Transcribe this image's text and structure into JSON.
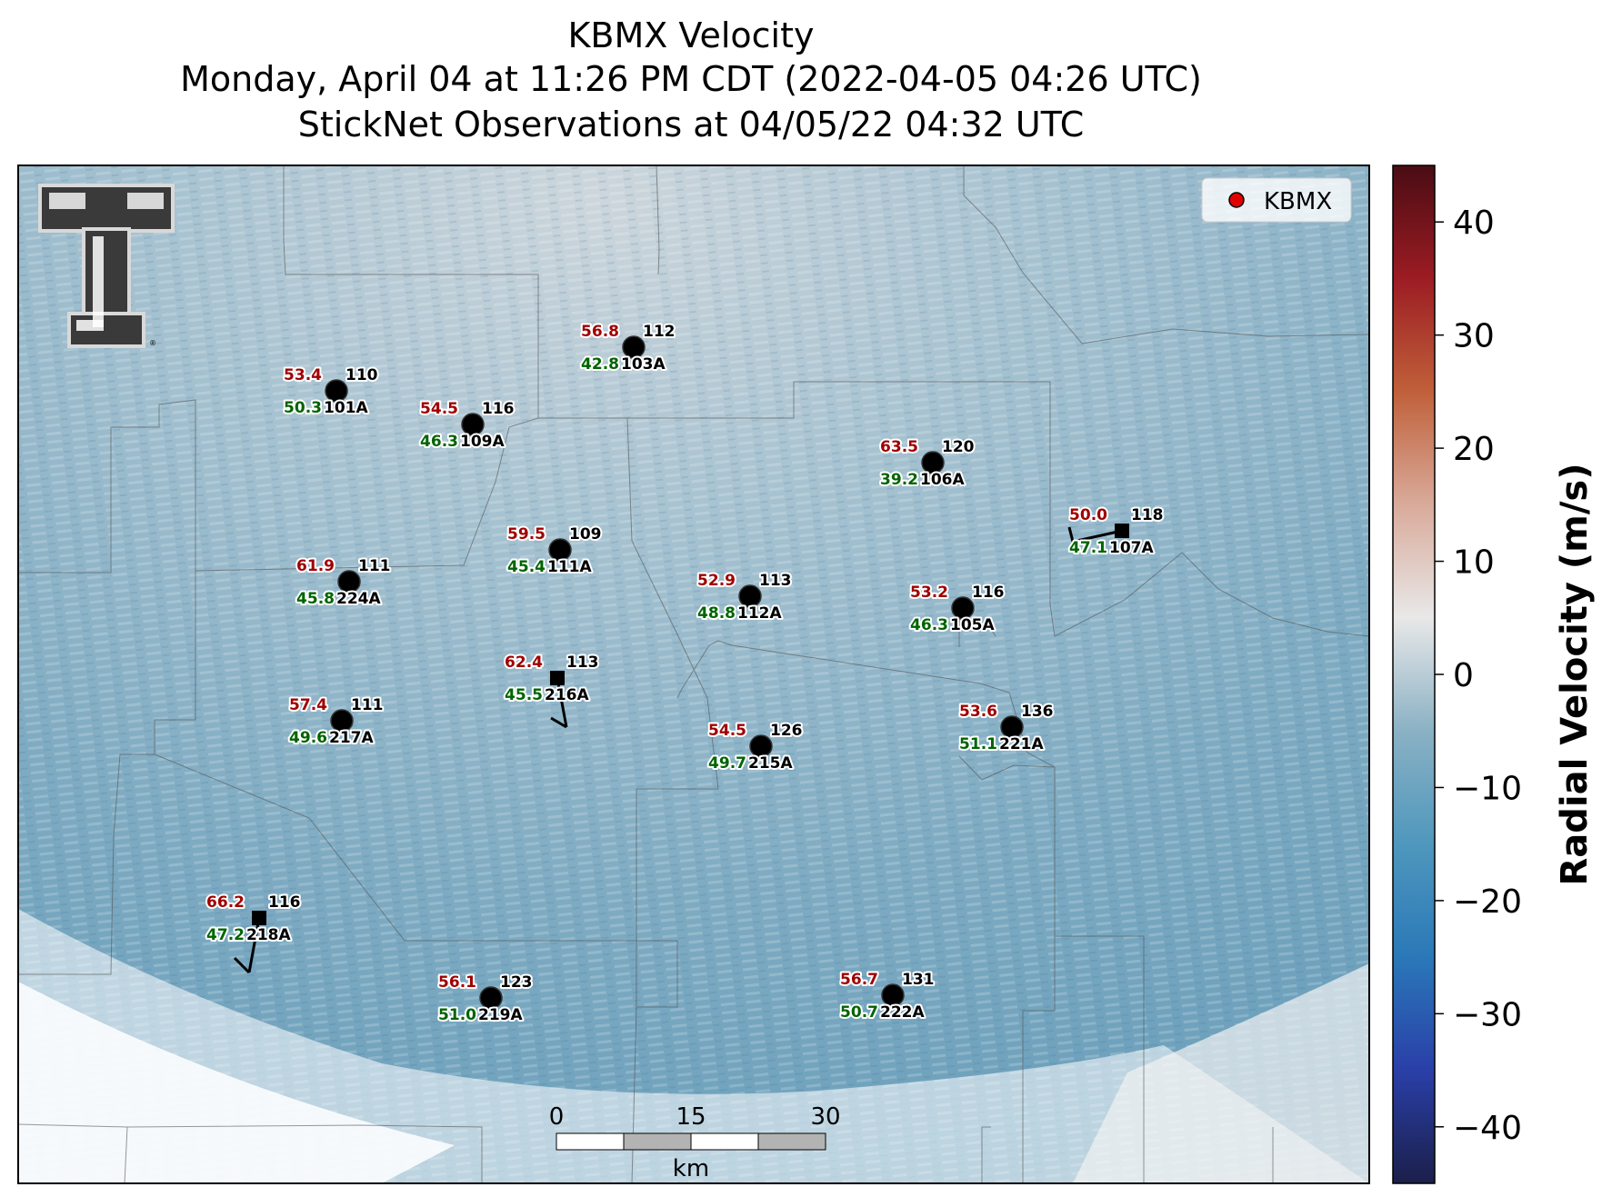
{
  "title": {
    "line1": "KBMX Velocity",
    "line2": "Monday, April 04 at 11:26 PM CDT (2022-04-05 04:26 UTC)",
    "line3": "StickNet Observations at 04/05/22 04:32 UTC"
  },
  "legend": {
    "label": "KBMX",
    "marker_color": "#e00000"
  },
  "colorbar": {
    "label": "Radial Velocity (m/s)",
    "ticks": [
      "40",
      "30",
      "20",
      "10",
      "0",
      "−10",
      "−20",
      "−30",
      "−40"
    ],
    "range": [
      -45,
      45
    ],
    "colors": [
      "#1b1f4a",
      "#2a3fa8",
      "#2a78b8",
      "#4f97bd",
      "#8ab1c4",
      "#e8e8e8",
      "#d9aa9a",
      "#c0603a",
      "#9c1c23",
      "#4a0c14"
    ]
  },
  "scale_bar": {
    "ticks": [
      "0",
      "15",
      "30"
    ],
    "unit": "km"
  },
  "stations": [
    {
      "id": "101A",
      "temp": "53.4",
      "dew": "50.3",
      "dir": "110",
      "marker": "circle"
    },
    {
      "id": "109A",
      "temp": "54.5",
      "dew": "46.3",
      "dir": "116",
      "marker": "circle"
    },
    {
      "id": "103A",
      "temp": "56.8",
      "dew": "42.8",
      "dir": "112",
      "marker": "circle"
    },
    {
      "id": "106A",
      "temp": "63.5",
      "dew": "39.2",
      "dir": "120",
      "marker": "circle"
    },
    {
      "id": "107A",
      "temp": "50.0",
      "dew": "47.1",
      "dir": "118",
      "marker": "square"
    },
    {
      "id": "111A",
      "temp": "59.5",
      "dew": "45.4",
      "dir": "109",
      "marker": "circle"
    },
    {
      "id": "224A",
      "temp": "61.9",
      "dew": "45.8",
      "dir": "111",
      "marker": "circle"
    },
    {
      "id": "112A",
      "temp": "52.9",
      "dew": "48.8",
      "dir": "113",
      "marker": "circle"
    },
    {
      "id": "105A",
      "temp": "53.2",
      "dew": "46.3",
      "dir": "116",
      "marker": "circle"
    },
    {
      "id": "216A",
      "temp": "62.4",
      "dew": "45.5",
      "dir": "113",
      "marker": "square"
    },
    {
      "id": "217A",
      "temp": "57.4",
      "dew": "49.6",
      "dir": "111",
      "marker": "circle"
    },
    {
      "id": "215A",
      "temp": "54.5",
      "dew": "49.7",
      "dir": "126",
      "marker": "circle"
    },
    {
      "id": "221A",
      "temp": "53.6",
      "dew": "51.1",
      "dir": "136",
      "marker": "circle"
    },
    {
      "id": "218A",
      "temp": "66.2",
      "dew": "47.2",
      "dir": "116",
      "marker": "square"
    },
    {
      "id": "219A",
      "temp": "56.1",
      "dew": "51.0",
      "dir": "123",
      "marker": "circle"
    },
    {
      "id": "222A",
      "temp": "56.7",
      "dew": "50.7",
      "dir": "131",
      "marker": "circle"
    }
  ],
  "colors": {
    "temp": "#a00000",
    "dew": "#006400",
    "text": "#000000"
  },
  "logo_text": "TT"
}
